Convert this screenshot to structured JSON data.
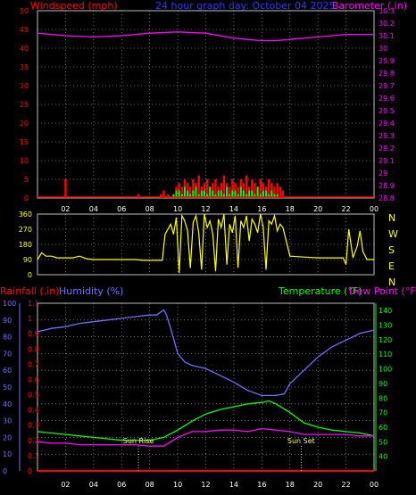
{
  "colors": {
    "wind": "#ff0000",
    "gust": "#00ff00",
    "barometer": "#ff00ff",
    "winddir": "#ffff00",
    "humidity": "#6f6fff",
    "temperature": "#00ff00",
    "dewpoint": "#ff00ff",
    "rainfall": "#ff0000",
    "grid": "#bbbbbb",
    "white": "#ffffff"
  },
  "chart_data": [
    {
      "type": "bar",
      "title": "24 hour graph day: October 04 2025",
      "ylabel_left": "Windspeed (mph)",
      "ylabel_right": "Barometer (.in)",
      "x_ticks": [
        "02",
        "04",
        "06",
        "08",
        "10",
        "12",
        "14",
        "16",
        "18",
        "20",
        "22",
        "00"
      ],
      "y_ticks_left": [
        "0",
        "5",
        "10",
        "15",
        "20",
        "25",
        "30",
        "35",
        "40",
        "45",
        "50"
      ],
      "y_ticks_right": [
        "28.8",
        "28.9",
        "29",
        "29.1",
        "29.2",
        "29.3",
        "29.4",
        "29.5",
        "29.6",
        "29.7",
        "29.8",
        "29.9",
        "30",
        "30.1",
        "30.2",
        "30.3"
      ],
      "ylim_left": [
        0,
        50
      ],
      "ylim_right": [
        28.8,
        30.3
      ],
      "grid": true,
      "series": [
        {
          "name": "Barometer",
          "x_hours": [
            0,
            2,
            4,
            6,
            8,
            10,
            12,
            14,
            16,
            17,
            18,
            20,
            22,
            24
          ],
          "values": [
            30.12,
            30.1,
            30.09,
            30.1,
            30.12,
            30.13,
            30.12,
            30.08,
            30.06,
            30.06,
            30.07,
            30.09,
            30.11,
            30.11
          ]
        },
        {
          "name": "Windspeed",
          "x_hours": [
            2.0,
            7.2,
            8.8,
            9.0,
            9.3,
            9.7,
            9.9,
            10.1,
            10.3,
            10.5,
            10.7,
            10.9,
            11.1,
            11.3,
            11.5,
            11.7,
            11.9,
            12.1,
            12.3,
            12.5,
            12.7,
            12.9,
            13.1,
            13.3,
            13.5,
            13.7,
            13.9,
            14.1,
            14.3,
            14.5,
            14.7,
            14.9,
            15.1,
            15.3,
            15.5,
            15.7,
            15.9,
            16.1,
            16.3,
            16.5,
            16.7,
            16.9,
            17.1,
            17.3,
            17.5
          ],
          "values": [
            5,
            1,
            1,
            2,
            1,
            1,
            3,
            4,
            3,
            5,
            4,
            3,
            5,
            4,
            6,
            3,
            4,
            5,
            3,
            4,
            5,
            3,
            4,
            6,
            4,
            3,
            5,
            4,
            3,
            5,
            4,
            6,
            3,
            5,
            4,
            3,
            5,
            4,
            3,
            5,
            4,
            3,
            4,
            3,
            2
          ]
        },
        {
          "name": "Gust",
          "x_hours": [
            9.7,
            9.9,
            10.1,
            10.3,
            10.5,
            10.7,
            10.9,
            11.1,
            11.3,
            11.5,
            11.7,
            11.9,
            12.1,
            12.3,
            12.5,
            12.7,
            12.9,
            13.1,
            13.3,
            13.5,
            13.7,
            13.9,
            14.1,
            14.3,
            14.5,
            14.7,
            14.9,
            15.1,
            15.3,
            15.5,
            15.7,
            15.9,
            16.1,
            16.3,
            16.5,
            16.7,
            16.9,
            17.1
          ],
          "values": [
            1,
            2,
            2,
            1,
            3,
            2,
            1,
            2,
            3,
            1,
            2,
            2,
            1,
            3,
            2,
            1,
            2,
            2,
            1,
            3,
            1,
            2,
            2,
            1,
            3,
            2,
            1,
            2,
            2,
            1,
            3,
            1,
            2,
            2,
            1,
            2,
            1,
            1
          ]
        }
      ]
    },
    {
      "type": "line",
      "ylabel_right": "N W S E N",
      "x_ticks": [
        "02",
        "04",
        "06",
        "08",
        "10",
        "12",
        "14",
        "16",
        "18",
        "20",
        "22",
        "00"
      ],
      "y_ticks": [
        "0",
        "90",
        "180",
        "270",
        "360"
      ],
      "right_labels": [
        "N",
        "W",
        "S",
        "E",
        "N"
      ],
      "ylim": [
        0,
        360
      ],
      "grid": true,
      "series": [
        {
          "name": "Wind Direction",
          "x_hours": [
            0,
            0.3,
            0.6,
            1.0,
            1.4,
            2.0,
            2.5,
            3.0,
            3.5,
            4.0,
            5.0,
            6.0,
            7.0,
            7.5,
            8.0,
            8.5,
            8.9,
            9.1,
            9.3,
            9.5,
            9.7,
            9.9,
            10.1,
            10.3,
            10.5,
            10.7,
            10.9,
            11.1,
            11.3,
            11.5,
            11.7,
            11.9,
            12.1,
            12.3,
            12.5,
            12.7,
            12.9,
            13.1,
            13.3,
            13.5,
            13.7,
            13.9,
            14.1,
            14.3,
            14.5,
            14.7,
            14.9,
            15.1,
            15.3,
            15.5,
            15.7,
            15.9,
            16.1,
            16.3,
            16.5,
            16.7,
            16.9,
            17.1,
            17.3,
            17.5,
            18.0,
            19.0,
            20.0,
            21.0,
            21.8,
            22.0,
            22.2,
            22.5,
            22.8,
            23.0,
            23.2,
            23.5,
            24.0
          ],
          "values": [
            90,
            130,
            110,
            110,
            100,
            100,
            100,
            110,
            95,
            90,
            90,
            90,
            90,
            85,
            85,
            85,
            85,
            240,
            270,
            300,
            240,
            340,
            10,
            350,
            320,
            260,
            40,
            310,
            350,
            250,
            30,
            360,
            280,
            320,
            240,
            20,
            330,
            280,
            360,
            60,
            300,
            250,
            350,
            40,
            320,
            280,
            350,
            200,
            330,
            300,
            250,
            360,
            280,
            30,
            320,
            300,
            350,
            260,
            300,
            280,
            110,
            105,
            100,
            100,
            100,
            60,
            270,
            100,
            170,
            260,
            140,
            90,
            90
          ]
        }
      ]
    },
    {
      "type": "line",
      "ylabel_left_rain": "Rainfall (.in)",
      "ylabel_left_humidity": "Humidity (%)",
      "ylabel_right_temp": "Temperature (°F)",
      "ylabel_right_dew": "Dew Point (°F)",
      "x_ticks": [
        "02",
        "04",
        "06",
        "08",
        "10",
        "12",
        "14",
        "16",
        "18",
        "20",
        "22",
        "00"
      ],
      "rain_ticks": [
        "0",
        "0.1",
        "0.2",
        "0.3",
        "0.4",
        "0.5",
        "0.6",
        "0.7",
        "0.8",
        "0.9",
        "1",
        "1.1"
      ],
      "humidity_ticks": [
        "0",
        "10",
        "20",
        "30",
        "40",
        "50",
        "60",
        "70",
        "80",
        "90",
        "100"
      ],
      "temp_ticks": [
        "40",
        "50",
        "60",
        "70",
        "80",
        "90",
        "100",
        "110",
        "120",
        "130",
        "140"
      ],
      "ylim_humidity": [
        0,
        100
      ],
      "ylim_rain": [
        0,
        1.1
      ],
      "ylim_temp": [
        30,
        145
      ],
      "grid": true,
      "annotations": [
        {
          "text": "Sun Rise",
          "x_hour": 7.2
        },
        {
          "text": "Sun Set",
          "x_hour": 18.8
        }
      ],
      "series": [
        {
          "name": "Humidity",
          "x_hours": [
            0,
            1,
            2,
            3,
            4,
            5,
            6,
            7,
            8,
            8.5,
            9.0,
            9.2,
            9.5,
            10,
            10.5,
            11,
            12,
            13,
            14,
            15,
            16,
            17,
            17.6,
            18,
            19,
            20,
            21,
            22,
            23,
            24
          ],
          "values": [
            83,
            85,
            86,
            88,
            89,
            90,
            91,
            92,
            93,
            93,
            96,
            93,
            85,
            70,
            65,
            63,
            61,
            57,
            53,
            48,
            45,
            45,
            46,
            52,
            60,
            68,
            74,
            78,
            82,
            84
          ]
        },
        {
          "name": "Temperature",
          "x_hours": [
            0,
            1,
            2,
            3,
            4,
            5,
            6,
            7,
            8,
            9,
            10,
            11,
            12,
            13,
            14,
            15,
            16,
            16.5,
            17,
            18,
            19,
            20,
            21,
            22,
            23,
            24
          ],
          "values": [
            57,
            56,
            55,
            54,
            53,
            52,
            51,
            51,
            51,
            53,
            58,
            64,
            69,
            72,
            74,
            76,
            77,
            78,
            76,
            70,
            63,
            60,
            58,
            57,
            56,
            54
          ]
        },
        {
          "name": "Dew Point",
          "x_hours": [
            0,
            1,
            2,
            3,
            4,
            5,
            6,
            7,
            8,
            9,
            10,
            11,
            12,
            13,
            14,
            15,
            16,
            17,
            18,
            19,
            20,
            21,
            22,
            23,
            24
          ],
          "values": [
            50,
            49,
            49,
            48,
            48,
            48,
            48,
            48,
            47,
            47,
            53,
            57,
            57,
            58,
            58,
            57,
            59,
            58,
            57,
            55,
            55,
            55,
            55,
            54,
            54
          ]
        },
        {
          "name": "Rainfall",
          "x_hours": [
            0,
            24
          ],
          "values": [
            0,
            0
          ]
        }
      ]
    }
  ]
}
